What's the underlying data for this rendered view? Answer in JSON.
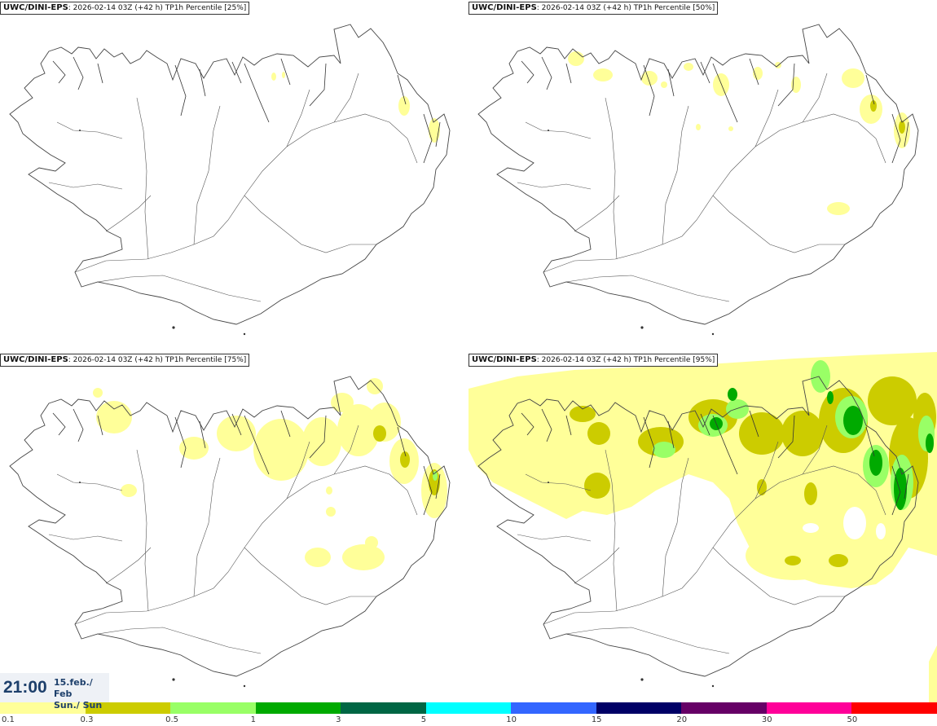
{
  "panels": [
    {
      "model": "UWC/DINI-EPS",
      "run": "2026-02-14 03Z (+42 h)",
      "field": "TP1h Percentile",
      "pct": "[25%]"
    },
    {
      "model": "UWC/DINI-EPS",
      "run": "2026-02-14 03Z (+42 h)",
      "field": "TP1h Percentile",
      "pct": "[50%]"
    },
    {
      "model": "UWC/DINI-EPS",
      "run": "2026-02-14 03Z (+42 h)",
      "field": "TP1h Percentile",
      "pct": "[75%]"
    },
    {
      "model": "UWC/DINI-EPS",
      "run": "2026-02-14 03Z (+42 h)",
      "field": "TP1h Percentile",
      "pct": "[95%]"
    }
  ],
  "valid_time": {
    "time": "21:00",
    "date_line": "15.feb./ Feb",
    "day_line": "Sun./ Sun"
  },
  "legend": {
    "colors": [
      "#ffff99",
      "#cccc00",
      "#99ff66",
      "#00aa00",
      "#006644",
      "#00ffff",
      "#3366ff",
      "#000066",
      "#660066",
      "#ff0099",
      "#ff0000"
    ],
    "labels": [
      "0.1",
      "0.3",
      "0.5",
      "1",
      "3",
      "5",
      "10",
      "15",
      "20",
      "30",
      "50"
    ]
  },
  "map": {
    "region_shape": "Iceland coastline with road network",
    "precip_colors": {
      "light": "#ffff99",
      "olive": "#cccc00",
      "lightgreen": "#99ff66",
      "green": "#00aa00",
      "dark": "#006644"
    }
  }
}
